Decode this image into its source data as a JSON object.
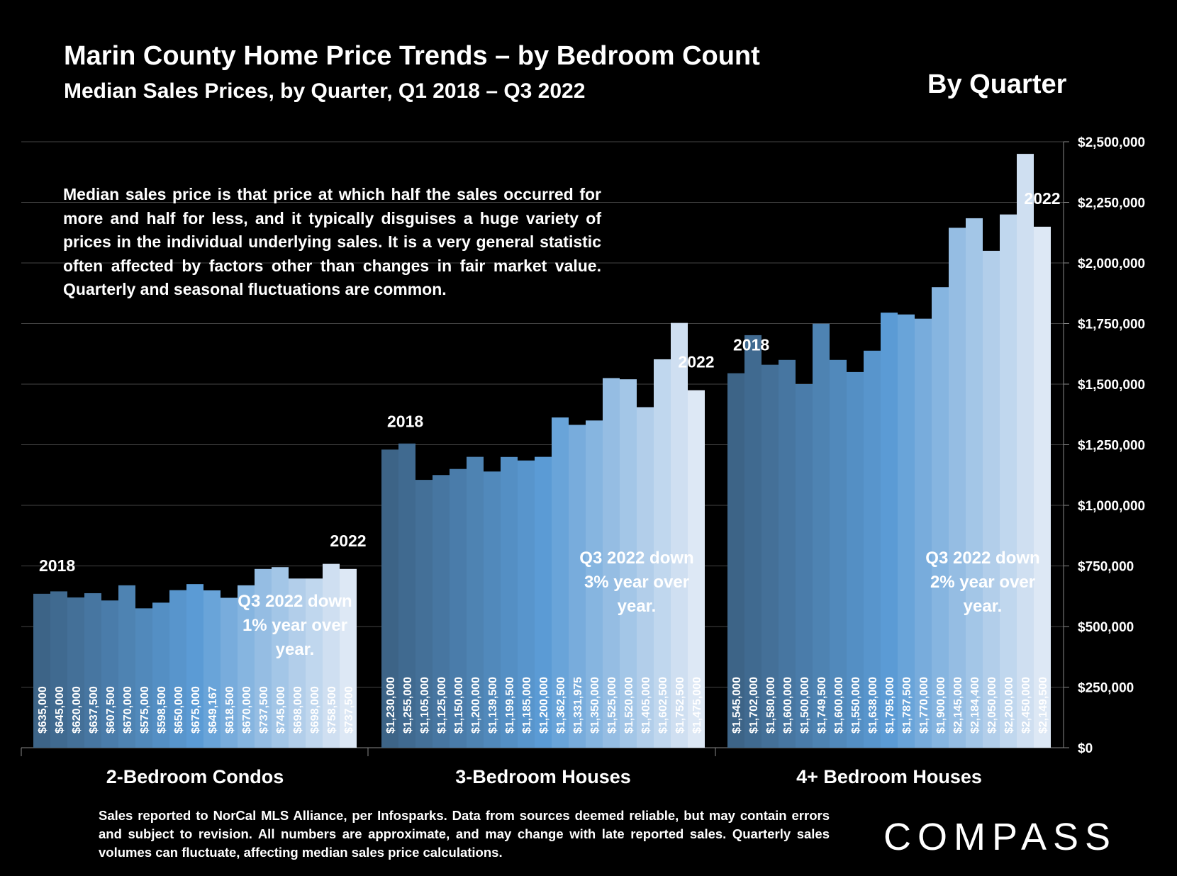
{
  "header": {
    "title": "Marin County Home Price Trends – by Bedroom Count",
    "subtitle": "Median Sales Prices, by Quarter, Q1 2018 – Q3 2022",
    "badge": "By Quarter"
  },
  "description": "Median sales price is that price at which half the sales occurred for more and half for less, and it typically disguises a huge variety of prices in the individual underlying sales. It is a very general statistic often affected by factors other than changes in fair market value. Quarterly and seasonal fluctuations are common.",
  "footnote": "Sales reported to NorCal MLS Alliance, per Infosparks. Data from sources deemed reliable, but may contain errors and subject to revision. All numbers are approximate, and may change with late reported sales. Quarterly sales volumes can fluctuate, affecting median sales price calculations.",
  "logo": "COMPASS",
  "colors": {
    "dark": "#3d6487",
    "mid": "#5b9bd5",
    "light": "#dde8f5",
    "background": "#000000"
  },
  "chart_data": {
    "type": "bar",
    "ylim": [
      0,
      2500000
    ],
    "yticks": [
      "$0",
      "$250,000",
      "$500,000",
      "$750,000",
      "$1,000,000",
      "$1,250,000",
      "$1,500,000",
      "$1,750,000",
      "$2,000,000",
      "$2,250,000",
      "$2,500,000"
    ],
    "yaxis_position": "right",
    "grid": true,
    "groups": [
      {
        "name": "2-Bedroom Condos",
        "start_label": "2018",
        "end_label": "2022",
        "note": [
          "Q3 2022 down",
          "1% year over",
          "year."
        ],
        "values": [
          635000,
          645000,
          620000,
          637500,
          607500,
          670000,
          575000,
          598500,
          650000,
          675000,
          649167,
          618500,
          670000,
          737500,
          745000,
          698000,
          698000,
          758500,
          737500
        ],
        "labels": [
          "$635,000",
          "$645,000",
          "$620,000",
          "$637,500",
          "$607,500",
          "$670,000",
          "$575,000",
          "$598,500",
          "$650,000",
          "$675,000",
          "$649,167",
          "$618,500",
          "$670,000",
          "$737,500",
          "$745,000",
          "$698,000",
          "$698,000",
          "$758,500",
          "$737,500"
        ]
      },
      {
        "name": "3-Bedroom Houses",
        "start_label": "2018",
        "end_label": "2022",
        "note": [
          "Q3 2022 down",
          "3% year over",
          "year."
        ],
        "values": [
          1230000,
          1255000,
          1105000,
          1125000,
          1150000,
          1200000,
          1139500,
          1199500,
          1185000,
          1200000,
          1362500,
          1331975,
          1350000,
          1525000,
          1520000,
          1405000,
          1602500,
          1752500,
          1475000
        ],
        "labels": [
          "$1,230,000",
          "$1,255,000",
          "$1,105,000",
          "$1,125,000",
          "$1,150,000",
          "$1,200,000",
          "$1,139,500",
          "$1,199,500",
          "$1,185,000",
          "$1,200,000",
          "$1,362,500",
          "$1,331,975",
          "$1,350,000",
          "$1,525,000",
          "$1,520,000",
          "$1,405,000",
          "$1,602,500",
          "$1,752,500",
          "$1,475,000"
        ]
      },
      {
        "name": "4+ Bedroom Houses",
        "start_label": "2018",
        "end_label": "2022",
        "note": [
          "Q3 2022 down",
          "2% year over",
          "year."
        ],
        "values": [
          1545000,
          1702000,
          1580000,
          1600000,
          1500000,
          1749500,
          1600000,
          1550000,
          1638000,
          1795000,
          1787500,
          1770000,
          1900000,
          2145000,
          2184400,
          2050000,
          2200000,
          2450000,
          2149500
        ],
        "labels": [
          "$1,545,000",
          "$1,702,000",
          "$1,580,000",
          "$1,600,000",
          "$1,500,000",
          "$1,749,500",
          "$1,600,000",
          "$1,550,000",
          "$1,638,000",
          "$1,795,000",
          "$1,787,500",
          "$1,770,000",
          "$1,900,000",
          "$2,145,000",
          "$2,184,400",
          "$2,050,000",
          "$2,200,000",
          "$2,450,000",
          "$2,149,500"
        ]
      }
    ]
  }
}
